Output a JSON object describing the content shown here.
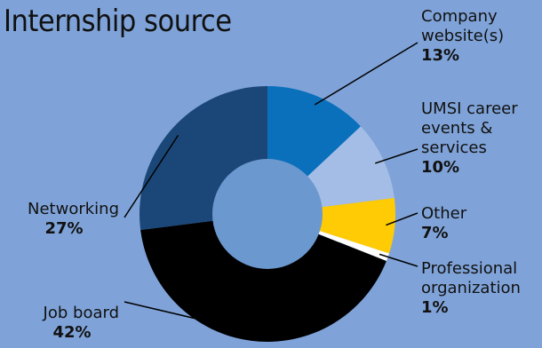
{
  "chart_data": {
    "type": "pie",
    "variant": "donut",
    "title": "Internship source",
    "start_angle_deg": 0,
    "direction": "clockwise",
    "slices": [
      {
        "label_lines": [
          "Company",
          "website(s)"
        ],
        "value": 13,
        "display": "13%",
        "color": "#0a70bb"
      },
      {
        "label_lines": [
          "UMSI career",
          "events &",
          "services"
        ],
        "value": 10,
        "display": "10%",
        "color": "#a4bde6"
      },
      {
        "label_lines": [
          "Other"
        ],
        "value": 7,
        "display": "7%",
        "color": "#ffcb05"
      },
      {
        "label_lines": [
          "Professional",
          "organization"
        ],
        "value": 1,
        "display": "1%",
        "color": "#ffffff"
      },
      {
        "label_lines": [
          "Job board"
        ],
        "value": 42,
        "display": "42%",
        "color": "#000000"
      },
      {
        "label_lines": [
          "Networking"
        ],
        "value": 27,
        "display": "27%",
        "color": "#1b4778"
      }
    ],
    "hole_color": "#6b98cf"
  }
}
